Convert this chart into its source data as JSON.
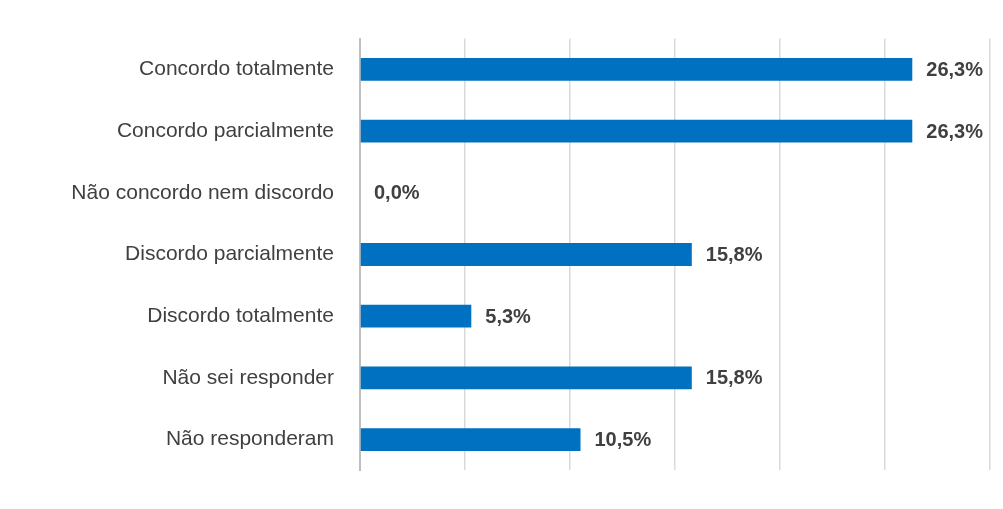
{
  "chart_data": {
    "type": "bar",
    "orientation": "horizontal",
    "categories": [
      "Concordo totalmente",
      "Concordo parcialmente",
      "Não concordo nem discordo",
      "Discordo parcialmente",
      "Discordo totalmente",
      "Não sei responder",
      "Não responderam"
    ],
    "values": [
      26.3,
      26.3,
      0.0,
      15.8,
      5.3,
      15.8,
      10.5
    ],
    "value_labels": [
      "26,3%",
      "26,3%",
      "0,0%",
      "15,8%",
      "5,3%",
      "15,8%",
      "10,5%"
    ],
    "color": "#0070c0",
    "xlim": [
      0,
      30
    ],
    "xticks": [
      {
        "value": 0,
        "label": null
      },
      {
        "value": 5,
        "label": null
      },
      {
        "value": 10,
        "label": null
      },
      {
        "value": 15,
        "label": null
      },
      {
        "value": 20,
        "label": null
      },
      {
        "value": 25,
        "label": null
      },
      {
        "value": 30,
        "label": null
      }
    ],
    "grid": "x",
    "tick_labels": "y",
    "legend": false
  }
}
